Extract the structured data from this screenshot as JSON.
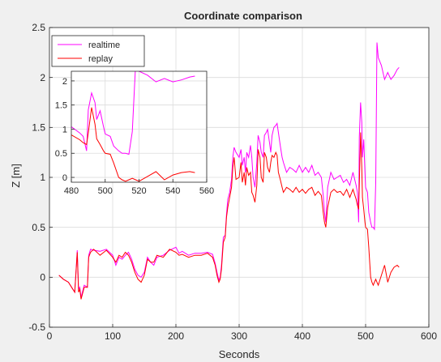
{
  "chart_data": {
    "type": "line",
    "title": "Coordinate comparison",
    "xlabel": "Seconds",
    "ylabel": "Z [m]",
    "xlim": [
      0,
      600
    ],
    "ylim": [
      -0.5,
      2.5
    ],
    "xticks": [
      0,
      100,
      200,
      300,
      400,
      500,
      600
    ],
    "yticks": [
      -0.5,
      0,
      0.5,
      1,
      1.5,
      2,
      2.5
    ],
    "grid": true,
    "legend_position": "top-left",
    "series": [
      {
        "name": "realtime",
        "color": "#ff00ff",
        "x": [
          15,
          22,
          30,
          35,
          40,
          44,
          46,
          48,
          50,
          55,
          60,
          62,
          65,
          70,
          80,
          90,
          100,
          105,
          110,
          115,
          120,
          125,
          130,
          135,
          140,
          145,
          150,
          155,
          160,
          165,
          170,
          180,
          190,
          200,
          205,
          210,
          220,
          230,
          240,
          250,
          258,
          262,
          265,
          268,
          270,
          272,
          275,
          278,
          280,
          282,
          285,
          288,
          290,
          292,
          295,
          300,
          303,
          305,
          308,
          310,
          312,
          315,
          318,
          320,
          322,
          325,
          328,
          330,
          333,
          335,
          338,
          340,
          343,
          345,
          348,
          350,
          352,
          355,
          358,
          360,
          362,
          365,
          368,
          370,
          375,
          380,
          385,
          390,
          395,
          400,
          405,
          410,
          415,
          420,
          425,
          430,
          433,
          435,
          437,
          440,
          445,
          450,
          455,
          460,
          465,
          470,
          475,
          480,
          485,
          487,
          489,
          490,
          492,
          494,
          495,
          497,
          499,
          500,
          503,
          505,
          508,
          510,
          512,
          514,
          516,
          518,
          520,
          525,
          530,
          535,
          540,
          545,
          550,
          553
        ],
        "y": [
          0.02,
          -0.02,
          -0.05,
          -0.1,
          -0.15,
          0.27,
          -0.12,
          -0.1,
          -0.2,
          -0.08,
          -0.1,
          0.22,
          0.28,
          0.27,
          0.26,
          0.28,
          0.22,
          0.12,
          0.2,
          0.18,
          0.22,
          0.25,
          0.18,
          0.08,
          0.02,
          0.0,
          0.05,
          0.2,
          0.15,
          0.12,
          0.2,
          0.22,
          0.27,
          0.3,
          0.24,
          0.26,
          0.22,
          0.24,
          0.24,
          0.25,
          0.23,
          0.14,
          0.05,
          -0.03,
          0.0,
          0.12,
          0.4,
          0.42,
          0.63,
          0.78,
          0.85,
          0.98,
          1.2,
          1.3,
          1.25,
          1.2,
          1.28,
          1.12,
          1.2,
          1.05,
          1.25,
          1.2,
          1.32,
          1.2,
          1.0,
          0.9,
          1.15,
          1.42,
          1.35,
          1.25,
          1.2,
          1.42,
          1.45,
          1.48,
          1.35,
          1.25,
          1.42,
          1.5,
          1.52,
          1.54,
          1.45,
          1.32,
          1.2,
          1.15,
          1.05,
          1.1,
          1.08,
          1.05,
          1.12,
          1.05,
          1.1,
          1.05,
          1.12,
          1.02,
          1.05,
          1.0,
          0.82,
          0.65,
          0.55,
          0.9,
          1.05,
          0.98,
          1.0,
          1.02,
          0.95,
          0.98,
          0.92,
          1.05,
          0.92,
          0.85,
          0.55,
          1.4,
          1.75,
          1.55,
          1.2,
          1.38,
          1.05,
          0.9,
          0.85,
          0.65,
          0.55,
          0.5,
          0.5,
          0.48,
          0.95,
          2.35,
          2.2,
          2.12,
          1.98,
          2.05,
          1.98,
          2.02,
          2.08,
          2.1
        ]
      },
      {
        "name": "replay",
        "color": "#ff0000",
        "x": [
          15,
          22,
          30,
          35,
          40,
          44,
          46,
          48,
          50,
          55,
          60,
          62,
          65,
          70,
          80,
          90,
          100,
          105,
          110,
          115,
          120,
          125,
          130,
          135,
          140,
          145,
          150,
          155,
          160,
          165,
          170,
          180,
          190,
          200,
          205,
          210,
          220,
          230,
          240,
          250,
          258,
          262,
          265,
          268,
          270,
          272,
          275,
          278,
          280,
          282,
          285,
          288,
          290,
          292,
          295,
          300,
          303,
          305,
          308,
          310,
          312,
          315,
          318,
          320,
          322,
          325,
          328,
          330,
          333,
          335,
          338,
          340,
          343,
          345,
          348,
          350,
          352,
          355,
          358,
          360,
          362,
          365,
          368,
          370,
          375,
          380,
          385,
          390,
          395,
          400,
          405,
          410,
          415,
          420,
          425,
          430,
          433,
          435,
          437,
          440,
          445,
          450,
          455,
          460,
          465,
          470,
          475,
          480,
          485,
          487,
          489,
          490,
          492,
          494,
          495,
          497,
          499,
          500,
          503,
          505,
          508,
          510,
          512,
          514,
          516,
          518,
          520,
          525,
          530,
          535,
          540,
          545,
          550,
          553
        ],
        "y": [
          0.02,
          -0.02,
          -0.05,
          -0.1,
          -0.15,
          0.25,
          -0.15,
          -0.12,
          -0.22,
          -0.1,
          -0.1,
          0.2,
          0.25,
          0.28,
          0.22,
          0.27,
          0.2,
          0.15,
          0.22,
          0.2,
          0.25,
          0.22,
          0.15,
          0.05,
          -0.02,
          -0.05,
          0.02,
          0.18,
          0.15,
          0.15,
          0.22,
          0.2,
          0.28,
          0.25,
          0.22,
          0.23,
          0.2,
          0.22,
          0.22,
          0.24,
          0.2,
          0.12,
          0.02,
          -0.05,
          -0.02,
          0.08,
          0.35,
          0.4,
          0.6,
          0.7,
          0.8,
          0.9,
          1.1,
          1.2,
          0.98,
          1.0,
          1.15,
          0.95,
          1.05,
          0.92,
          1.1,
          1.02,
          1.05,
          0.85,
          0.82,
          0.75,
          0.92,
          1.28,
          1.2,
          1.0,
          0.95,
          1.25,
          1.2,
          1.1,
          1.05,
          1.15,
          1.22,
          1.2,
          1.25,
          1.22,
          1.05,
          0.98,
          0.9,
          0.85,
          0.9,
          0.88,
          0.85,
          0.9,
          0.85,
          0.88,
          0.84,
          0.88,
          0.9,
          0.82,
          0.86,
          0.82,
          0.65,
          0.55,
          0.5,
          0.7,
          0.85,
          0.88,
          0.85,
          0.86,
          0.82,
          0.88,
          0.8,
          0.88,
          0.78,
          0.72,
          0.68,
          0.92,
          1.45,
          1.1,
          0.8,
          0.68,
          0.55,
          0.5,
          0.48,
          0.3,
          0.0,
          -0.05,
          -0.08,
          -0.05,
          -0.02,
          -0.05,
          -0.08,
          0.02,
          0.12,
          -0.05,
          0.05,
          0.1,
          0.12,
          0.1
        ]
      }
    ],
    "inset": {
      "xlim": [
        480,
        560
      ],
      "ylim": [
        -0.1,
        2.2
      ],
      "xticks": [
        480,
        500,
        520,
        540,
        560
      ],
      "yticks": [
        0,
        0.5,
        1,
        1.5,
        2
      ]
    }
  }
}
